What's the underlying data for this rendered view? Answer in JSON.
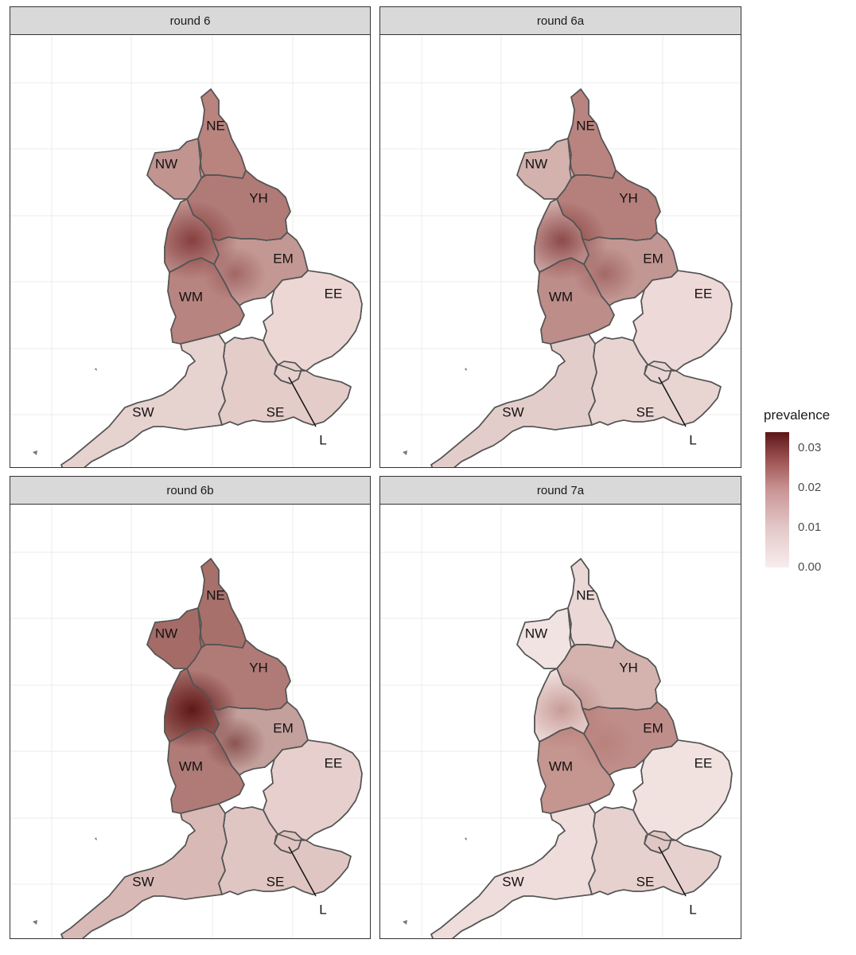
{
  "panels": [
    {
      "title": "round 6",
      "fills": {
        "NE": "#b9837e",
        "NW": "#c19490",
        "YH": "#b07a76",
        "EM": "#c39894",
        "WM": "#b88480",
        "EE": "#ecd7d5",
        "SE": "#e4ccc9",
        "L": "#e6d0cd",
        "SW": "#e6d2cf"
      },
      "hotspot": "#7c3030",
      "hotspot_strength": 0.85
    },
    {
      "title": "round 6a",
      "fills": {
        "NE": "#b9847f",
        "NW": "#d3b1ad",
        "YH": "#b5807b",
        "EM": "#c29692",
        "WM": "#bd8d89",
        "EE": "#edd9d7",
        "SE": "#e8d5d2",
        "L": "#e8d4d1",
        "SW": "#e3cdca"
      },
      "hotspot": "#7c3030",
      "hotspot_strength": 0.8
    },
    {
      "title": "round 6b",
      "fills": {
        "NE": "#a8706b",
        "NW": "#a56c67",
        "YH": "#b07a76",
        "EM": "#c3a09c",
        "WM": "#b07b77",
        "EE": "#e6cfcc",
        "SE": "#e0c6c3",
        "L": "#dfc4c1",
        "SW": "#d8b9b6"
      },
      "hotspot": "#5e1717",
      "hotspot_strength": 1.0
    },
    {
      "title": "round 7a",
      "fills": {
        "NE": "#ebd8d6",
        "NW": "#f1e3e1",
        "YH": "#d4b3af",
        "EM": "#c08e8a",
        "WM": "#c5958f",
        "EE": "#f1e2e0",
        "SE": "#e6d1ce",
        "L": "#e0c7c3",
        "SW": "#eedddb"
      },
      "hotspot": "#a7625c",
      "hotspot_strength": 0.55
    }
  ],
  "region_labels": [
    "NE",
    "NW",
    "YH",
    "EM",
    "WM",
    "EE",
    "SE",
    "L",
    "SW"
  ],
  "legend": {
    "title": "prevalence",
    "ticks": [
      {
        "label": "0.03",
        "value": 0.03
      },
      {
        "label": "0.02",
        "value": 0.02
      },
      {
        "label": "0.01",
        "value": 0.01
      },
      {
        "label": "0.00",
        "value": 0.0
      }
    ],
    "min": 0.0,
    "max": 0.034,
    "colors": [
      "#f8eded",
      "#e3c7c7",
      "#c99393",
      "#9c5151",
      "#5c1616"
    ]
  }
}
